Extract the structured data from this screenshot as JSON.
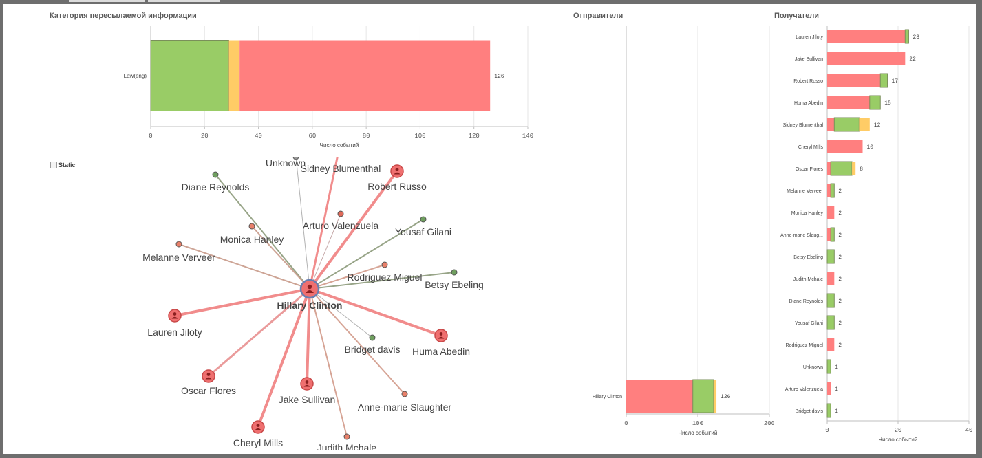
{
  "colors": {
    "red": "#ff7f7f",
    "green": "#99cc66",
    "yellow": "#ffcc66",
    "grid": "#e6e6e6",
    "axis": "#bfbfbf"
  },
  "panels": {
    "category_title": "Категория пересылаемой информации",
    "senders_title": "Отправители",
    "recipients_title": "Получатели",
    "static_label": "Static"
  },
  "chart_data": [
    {
      "id": "category",
      "type": "bar",
      "orientation": "horizontal",
      "stacked": true,
      "title": "Категория пересылаемой информации",
      "xlabel": "Число событий",
      "xlim": [
        0,
        140
      ],
      "xticks": [
        "0",
        "20",
        "40",
        "60",
        "80",
        "100",
        "120",
        "140"
      ],
      "categories": [
        "Law(eng)"
      ],
      "series": [
        {
          "name": "green",
          "color": "#99cc66",
          "values": [
            29
          ]
        },
        {
          "name": "yellow",
          "color": "#ffcc66",
          "values": [
            4
          ]
        },
        {
          "name": "red",
          "color": "#ff7f7f",
          "values": [
            93
          ]
        }
      ],
      "totals": [
        "126"
      ]
    },
    {
      "id": "senders",
      "type": "bar",
      "orientation": "horizontal",
      "stacked": true,
      "title": "Отправители",
      "xlabel": "Число событий",
      "xlim": [
        0,
        200
      ],
      "xticks": [
        "0",
        "100",
        "200"
      ],
      "categories": [
        "Hillary Clinton"
      ],
      "series": [
        {
          "name": "red",
          "color": "#ff7f7f",
          "values": [
            93
          ]
        },
        {
          "name": "green",
          "color": "#99cc66",
          "values": [
            29
          ]
        },
        {
          "name": "yellow",
          "color": "#ffcc66",
          "values": [
            4
          ]
        }
      ],
      "totals": [
        "126"
      ]
    },
    {
      "id": "recipients",
      "type": "bar",
      "orientation": "horizontal",
      "stacked": true,
      "title": "Получатели",
      "xlabel": "Число событий",
      "xlim": [
        0,
        40
      ],
      "xticks": [
        "0",
        "20",
        "40"
      ],
      "categories": [
        "Lauren Jiloty",
        "Jake Sullivan",
        "Robert Russo",
        "Huma Abedin",
        "Sidney Blumenthal",
        "Cheryl Mills",
        "Oscar Flores",
        "Melanne Verveer",
        "Monica Hanley",
        "Anne-marie Slaug...",
        "Betsy Ebeling",
        "Judith Mchale",
        "Diane Reynolds",
        "Yousaf Gilani",
        "Rodriguez Miguel",
        "Unknown",
        "Arturo Valenzuela",
        "Bridget davis"
      ],
      "series": [
        {
          "name": "red",
          "color": "#ff7f7f",
          "values": [
            22,
            22,
            15,
            12,
            2,
            10,
            1,
            1,
            2,
            1,
            0,
            2,
            0,
            0,
            2,
            0,
            1,
            0
          ]
        },
        {
          "name": "green",
          "color": "#99cc66",
          "values": [
            1,
            0,
            2,
            3,
            7,
            0,
            6,
            1,
            0,
            1,
            2,
            0,
            2,
            2,
            0,
            1,
            0,
            1
          ]
        },
        {
          "name": "yellow",
          "color": "#ffcc66",
          "values": [
            0,
            0,
            0,
            0,
            3,
            0,
            1,
            0,
            0,
            0,
            0,
            0,
            0,
            0,
            0,
            0,
            0,
            0
          ]
        }
      ],
      "totals": [
        "23",
        "22",
        "17",
        "15",
        "12",
        "10",
        "8",
        "2",
        "2",
        "2",
        "2",
        "2",
        "2",
        "2",
        "2",
        "1",
        "1",
        "1"
      ]
    }
  ],
  "network": {
    "center": {
      "label": "Hillary Clinton"
    },
    "nodes": [
      {
        "label": "Unknown",
        "color": "#999999",
        "big": false,
        "edge": "#aaaaaa",
        "w": 1
      },
      {
        "label": "Sidney Blumenthal",
        "color": "#ff7f7f",
        "big": false,
        "edge": "#f08080",
        "w": 3
      },
      {
        "label": "Robert Russo",
        "color": "#ef6f6f",
        "big": true,
        "edge": "#f08080",
        "w": 4
      },
      {
        "label": "Diane Reynolds",
        "color": "#6f9f5f",
        "big": false,
        "edge": "#8c9a7a",
        "w": 2
      },
      {
        "label": "Arturo Valenzuela",
        "color": "#e06a5a",
        "big": false,
        "edge": "#c0a0a0",
        "w": 1
      },
      {
        "label": "Yousaf Gilani",
        "color": "#6f9f5f",
        "big": false,
        "edge": "#8c9a7a",
        "w": 2
      },
      {
        "label": "Monica Hanley",
        "color": "#e8806a",
        "big": false,
        "edge": "#c89a8a",
        "w": 2
      },
      {
        "label": "Melanne Verveer",
        "color": "#e8806a",
        "big": false,
        "edge": "#c89a8a",
        "w": 2
      },
      {
        "label": "Rodriguez Miguel",
        "color": "#e8806a",
        "big": false,
        "edge": "#d29a8a",
        "w": 2
      },
      {
        "label": "Betsy Ebeling",
        "color": "#6f9f5f",
        "big": false,
        "edge": "#8c9a7a",
        "w": 2
      },
      {
        "label": "Lauren Jiloty",
        "color": "#ef6f6f",
        "big": true,
        "edge": "#f08080",
        "w": 4
      },
      {
        "label": "Huma Abedin",
        "color": "#ef6f6f",
        "big": true,
        "edge": "#f08080",
        "w": 4
      },
      {
        "label": "Bridget davis",
        "color": "#6f9f5f",
        "big": false,
        "edge": "#aaaaaa",
        "w": 1
      },
      {
        "label": "Oscar Flores",
        "color": "#ef6f6f",
        "big": true,
        "edge": "#e89090",
        "w": 3
      },
      {
        "label": "Jake Sullivan",
        "color": "#ef6f6f",
        "big": true,
        "edge": "#f08080",
        "w": 4
      },
      {
        "label": "Anne-marie Slaughter",
        "color": "#e8806a",
        "big": false,
        "edge": "#d29a8a",
        "w": 2
      },
      {
        "label": "Cheryl Mills",
        "color": "#ef6f6f",
        "big": true,
        "edge": "#f08080",
        "w": 4
      },
      {
        "label": "Judith Mchale",
        "color": "#e8806a",
        "big": false,
        "edge": "#d29a8a",
        "w": 2
      }
    ]
  }
}
